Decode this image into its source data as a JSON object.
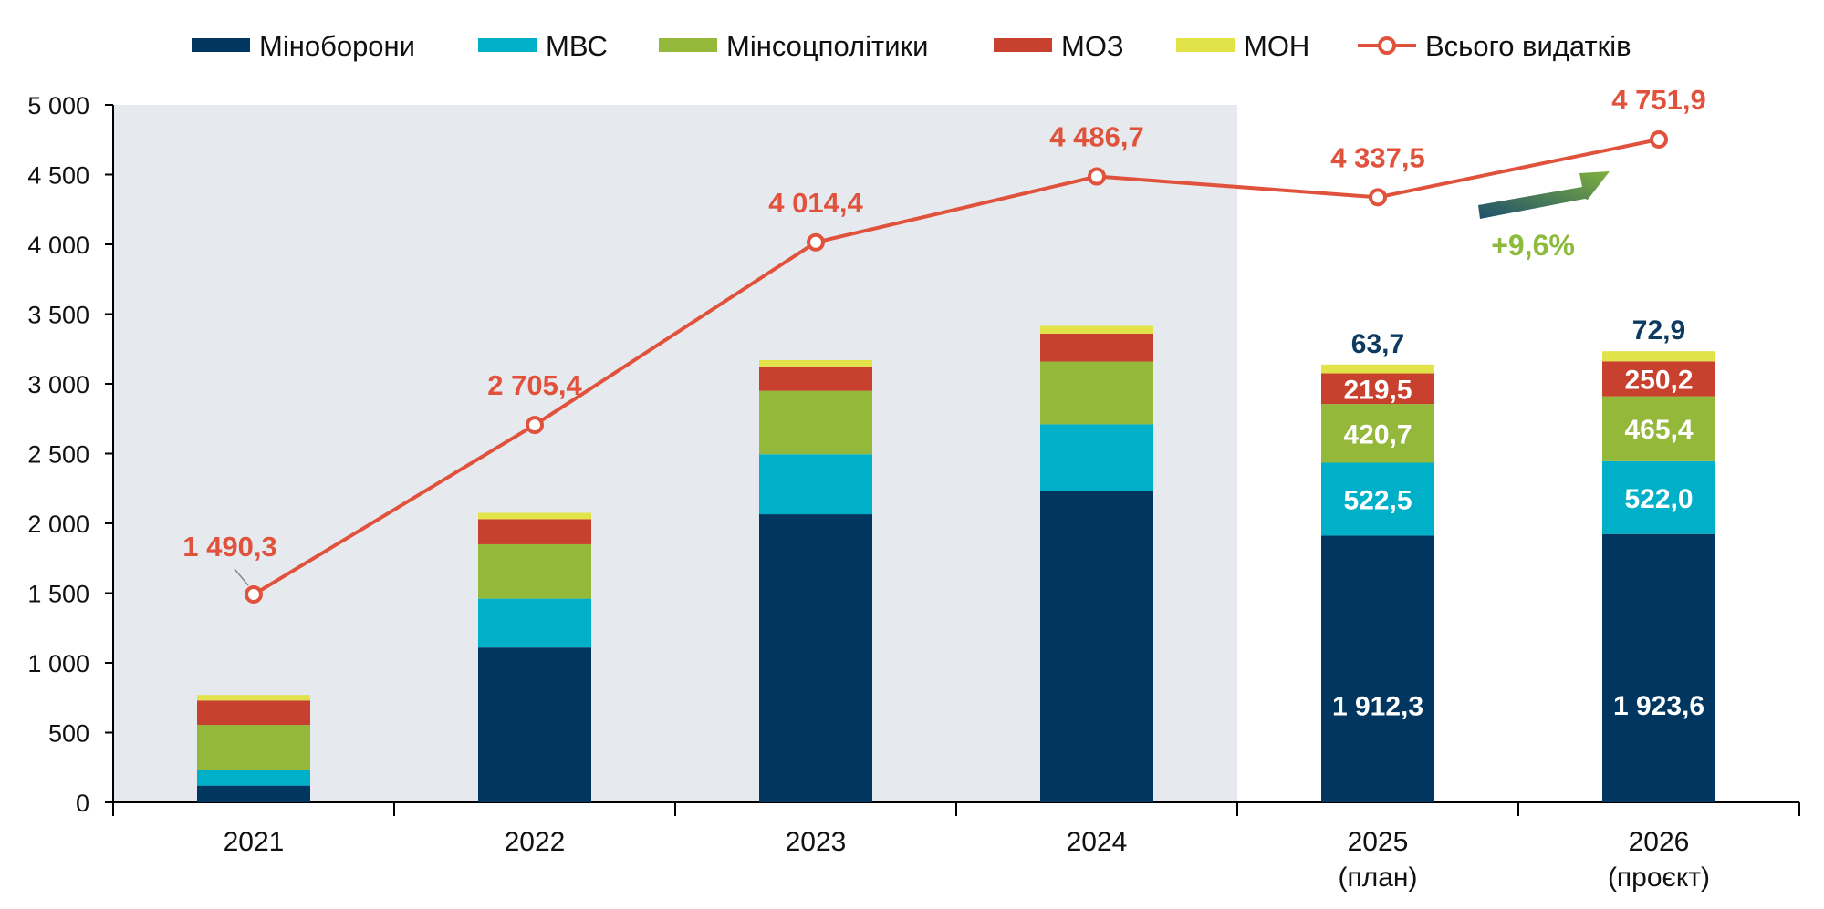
{
  "chart_data": {
    "type": "bar",
    "stacked": true,
    "categories": [
      "2021",
      "2022",
      "2023",
      "2024",
      "2025",
      "2026"
    ],
    "category_sublabels": [
      "",
      "",
      "",
      "",
      "(план)",
      "(проєкт)"
    ],
    "series": [
      {
        "name": "Міноборони",
        "color": "#00365f",
        "values": [
          120,
          1110,
          2065,
          2230,
          1912.3,
          1923.6
        ],
        "labels": [
          "",
          "",
          "",
          "",
          "1 912,3",
          "1 923,6"
        ]
      },
      {
        "name": "МВС",
        "color": "#00b0c8",
        "values": [
          110,
          350,
          430,
          480,
          522.5,
          522.0
        ],
        "labels": [
          "",
          "",
          "",
          "",
          "522,5",
          "522,0"
        ]
      },
      {
        "name": "Мінсоцполітики",
        "color": "#93b83a",
        "values": [
          325,
          390,
          455,
          450,
          420.7,
          465.4
        ],
        "labels": [
          "",
          "",
          "",
          "",
          "420,7",
          "465,4"
        ]
      },
      {
        "name": "МОЗ",
        "color": "#c8402e",
        "values": [
          175,
          180,
          175,
          200,
          219.5,
          250.2
        ],
        "labels": [
          "",
          "",
          "",
          "",
          "219,5",
          "250,2"
        ]
      },
      {
        "name": "МОН",
        "color": "#e2e348",
        "values": [
          40,
          45,
          45,
          55,
          63.7,
          72.9
        ],
        "labels": [
          "",
          "",
          "",
          "",
          "63,7",
          "72,9"
        ]
      }
    ],
    "line_series": {
      "name": "Всього видатків",
      "color": "#e0523c",
      "values": [
        1490.3,
        2705.4,
        4014.4,
        4486.7,
        4337.5,
        4751.9
      ],
      "labels": [
        "1 490,3",
        "2 705,4",
        "4 014,4",
        "4 486,7",
        "4 337,5",
        "4 751,9"
      ]
    },
    "annotation": {
      "text": "+9,6%",
      "color": "#8cba3a"
    },
    "shaded_categories": [
      "2021",
      "2022",
      "2023",
      "2024"
    ],
    "ylim": [
      0,
      5000
    ],
    "yticks": [
      0,
      500,
      1000,
      1500,
      2000,
      2500,
      3000,
      3500,
      4000,
      4500,
      5000
    ],
    "ytick_labels": [
      "0",
      "500",
      "1 000",
      "1 500",
      "2 000",
      "2 500",
      "3 000",
      "3 500",
      "4 000",
      "4 500",
      "5 000"
    ],
    "legend_position": "top",
    "title": "",
    "xlabel": "",
    "ylabel": ""
  }
}
